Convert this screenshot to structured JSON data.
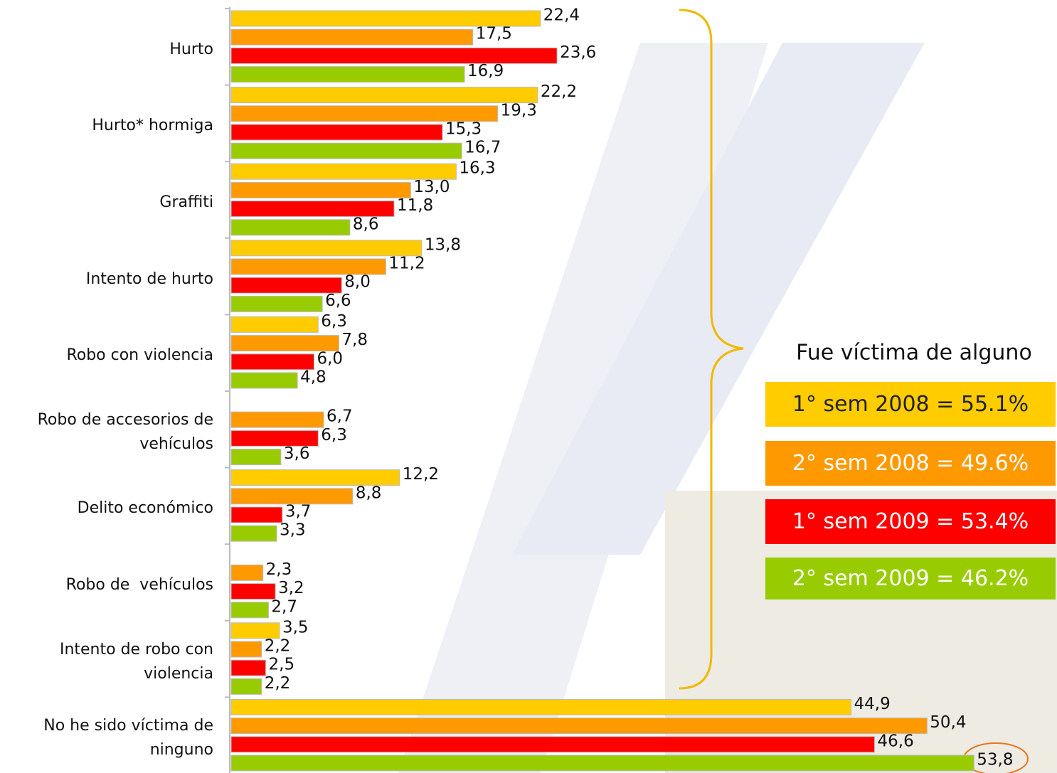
{
  "chart_data": {
    "type": "bar",
    "orientation": "horizontal",
    "annotation": "Fue víctima de alguno",
    "categories": [
      "Hurto",
      "Hurto* hormiga",
      "Graffiti",
      "Intento de hurto",
      "Robo con violencia",
      "Robo de accesorios de vehículos",
      "Delito económico",
      "Robo de  vehículos",
      "Intento de robo con violencia",
      "No he sido víctima de ninguno"
    ],
    "series": [
      {
        "name": "1° sem 2008 = 55.1%",
        "color": "#ffcc00",
        "values": [
          22.4,
          22.2,
          16.3,
          13.8,
          6.3,
          null,
          12.2,
          null,
          3.5,
          44.9
        ],
        "value_labels": [
          "22,4",
          "22,2",
          "16,3",
          "13,8",
          "6,3",
          null,
          "12,2",
          null,
          "3,5",
          "44,9"
        ]
      },
      {
        "name": "2° sem 2008 = 49.6%",
        "color": "#ff9900",
        "values": [
          17.5,
          19.3,
          13.0,
          11.2,
          7.8,
          6.7,
          8.8,
          2.3,
          2.2,
          50.4
        ],
        "value_labels": [
          "17,5",
          "19,3",
          "13,0",
          "11,2",
          "7,8",
          "6,7",
          "8,8",
          "2,3",
          "2,2",
          "50,4"
        ]
      },
      {
        "name": "1° sem 2009 = 53.4%",
        "color": "#ff0000",
        "values": [
          23.6,
          15.3,
          11.8,
          8.0,
          6.0,
          6.3,
          3.7,
          3.2,
          2.5,
          46.6
        ],
        "value_labels": [
          "23,6",
          "15,3",
          "11,8",
          "8,0",
          "6,0",
          "6,3",
          "3,7",
          "3,2",
          "2,5",
          "46,6"
        ]
      },
      {
        "name": "2° sem 2009 = 46.2%",
        "color": "#99cc00",
        "values": [
          16.9,
          16.7,
          8.6,
          6.6,
          4.8,
          3.6,
          3.3,
          2.7,
          2.2,
          53.8
        ],
        "value_labels": [
          "16,9",
          "16,7",
          "8,6",
          "6,6",
          "4,8",
          "3,6",
          "3,3",
          "2,7",
          "2,2",
          "53,8"
        ]
      }
    ],
    "xlim": [
      0,
      56
    ]
  }
}
